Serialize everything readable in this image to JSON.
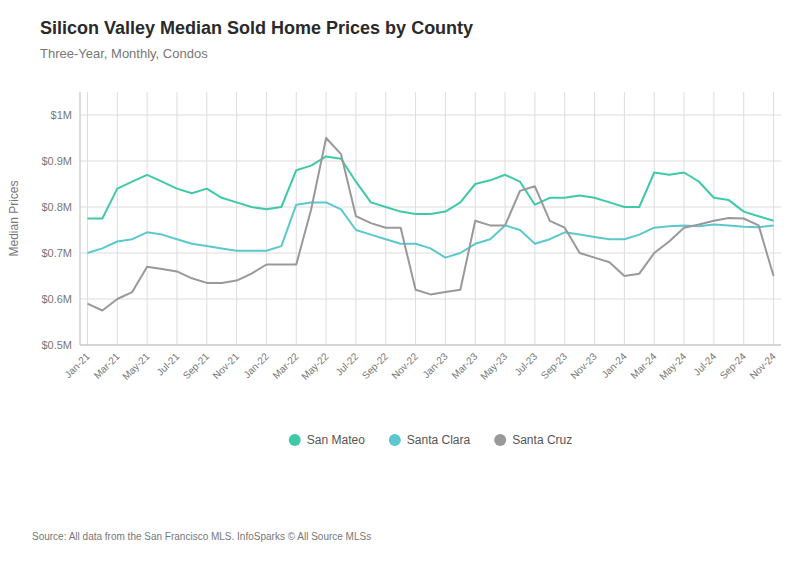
{
  "chart_data": {
    "type": "line",
    "title": "Silicon Valley Median Sold Home Prices by County",
    "subtitle": "Three-Year, Monthly, Condos",
    "ylabel": "Median Prices",
    "source": "Source:  All data from the San Francisco MLS. InfoSparks © All Source MLSs",
    "categories": [
      "Jan-21",
      null,
      "Mar-21",
      null,
      "May-21",
      null,
      "Jul-21",
      null,
      "Sep-21",
      null,
      "Nov-21",
      null,
      "Jan-22",
      null,
      "Mar-22",
      null,
      "May-22",
      null,
      "Jul-22",
      null,
      "Sep-22",
      null,
      "Nov-22",
      null,
      "Jan-23",
      null,
      "Mar-23",
      null,
      "May-23",
      null,
      "Jul-23",
      null,
      "Sep-23",
      null,
      "Nov-23",
      null,
      "Jan-24",
      null,
      "Mar-24",
      null,
      "May-24",
      null,
      "Jul-24",
      null,
      "Sep-24",
      null,
      "Nov-24"
    ],
    "series": [
      {
        "name": "San Mateo",
        "color": "#40C9A8",
        "values": [
          775000,
          775000,
          840000,
          855000,
          870000,
          855000,
          840000,
          830000,
          840000,
          820000,
          810000,
          800000,
          795000,
          800000,
          880000,
          890000,
          910000,
          905000,
          855000,
          810000,
          800000,
          790000,
          785000,
          785000,
          790000,
          810000,
          850000,
          858000,
          870000,
          855000,
          805000,
          820000,
          820000,
          825000,
          820000,
          810000,
          800000,
          800000,
          875000,
          870000,
          875000,
          855000,
          820000,
          815000,
          790000,
          780000,
          770000
        ]
      },
      {
        "name": "Santa Clara",
        "color": "#5BC8CE",
        "values": [
          700000,
          710000,
          725000,
          730000,
          745000,
          740000,
          730000,
          720000,
          715000,
          710000,
          705000,
          705000,
          705000,
          715000,
          805000,
          810000,
          810000,
          795000,
          750000,
          740000,
          730000,
          720000,
          720000,
          710000,
          690000,
          700000,
          720000,
          730000,
          760000,
          750000,
          720000,
          730000,
          745000,
          740000,
          735000,
          730000,
          730000,
          740000,
          755000,
          758000,
          760000,
          758000,
          762000,
          760000,
          757000,
          756000,
          760000
        ]
      },
      {
        "name": "Santa Cruz",
        "color": "#999999",
        "values": [
          590000,
          575000,
          600000,
          615000,
          670000,
          665000,
          660000,
          645000,
          635000,
          635000,
          640000,
          655000,
          675000,
          675000,
          675000,
          795000,
          950000,
          915000,
          780000,
          765000,
          755000,
          755000,
          620000,
          610000,
          615000,
          620000,
          770000,
          760000,
          760000,
          835000,
          845000,
          770000,
          755000,
          700000,
          690000,
          680000,
          650000,
          655000,
          700000,
          725000,
          755000,
          762000,
          770000,
          776000,
          775000,
          760000,
          650000
        ]
      }
    ],
    "ylim": [
      500000,
      1050000
    ],
    "yticks": [
      {
        "value": 500000,
        "label": "$0.5M"
      },
      {
        "value": 600000,
        "label": "$0.6M"
      },
      {
        "value": 700000,
        "label": "$0.7M"
      },
      {
        "value": 800000,
        "label": "$0.8M"
      },
      {
        "value": 900000,
        "label": "$0.9M"
      },
      {
        "value": 1000000,
        "label": "$1M"
      }
    ],
    "grid": true,
    "legend": "bottom"
  }
}
